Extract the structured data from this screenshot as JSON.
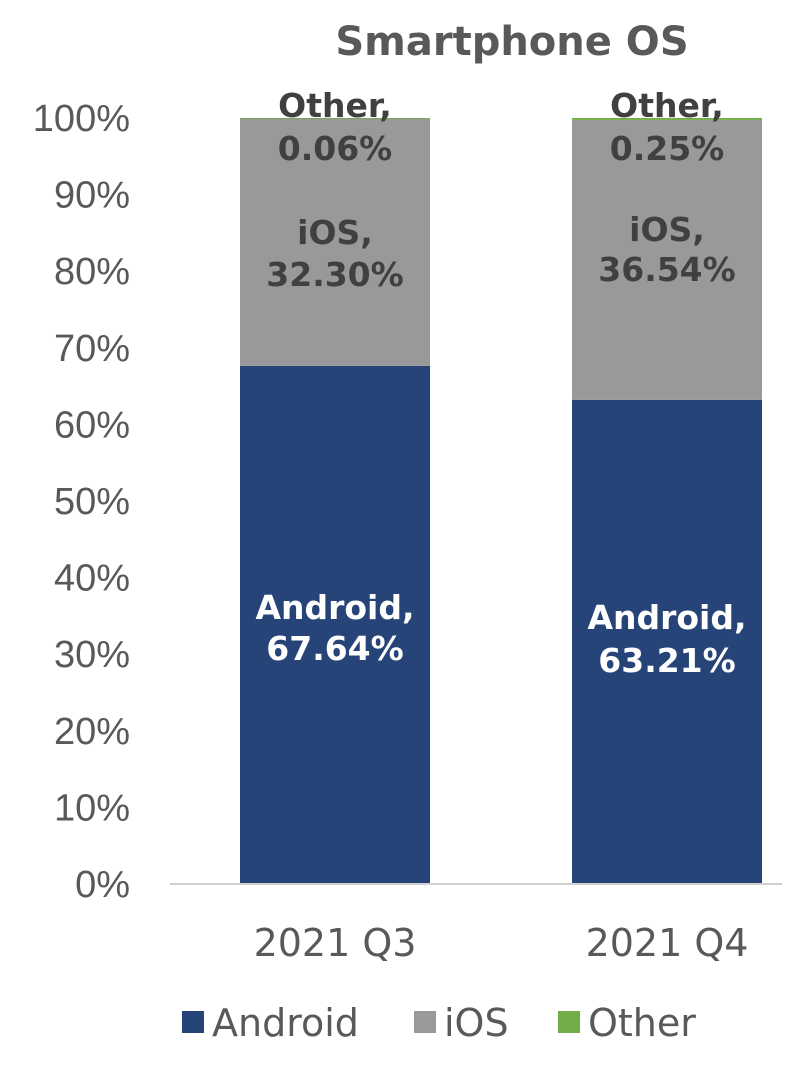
{
  "chart_data": {
    "type": "bar",
    "stacked": true,
    "percent_stacked": true,
    "title": "Smartphone OS",
    "categories": [
      "2021 Q3",
      "2021 Q4"
    ],
    "series": [
      {
        "name": "Android",
        "values": [
          67.64,
          63.21
        ],
        "labels": [
          "Android,",
          "Android,"
        ],
        "value_labels": [
          "67.64%",
          "63.21%"
        ],
        "color": "#264478",
        "label_color": "#ffffff"
      },
      {
        "name": "iOS",
        "values": [
          32.3,
          36.54
        ],
        "labels": [
          "iOS,",
          "iOS,"
        ],
        "value_labels": [
          "32.30%",
          "36.54%"
        ],
        "color": "#999999",
        "label_color": "#404040"
      },
      {
        "name": "Other",
        "values": [
          0.06,
          0.25
        ],
        "labels": [
          "Other,",
          "Other,"
        ],
        "value_labels": [
          "0.06%",
          "0.25%"
        ],
        "color": "#70ad47",
        "label_color": "#404040"
      }
    ],
    "yticks": [
      "0%",
      "10%",
      "20%",
      "30%",
      "40%",
      "50%",
      "60%",
      "70%",
      "80%",
      "90%",
      "100%"
    ],
    "ylim": [
      0,
      100
    ],
    "grid": false,
    "legend_position": "bottom"
  }
}
